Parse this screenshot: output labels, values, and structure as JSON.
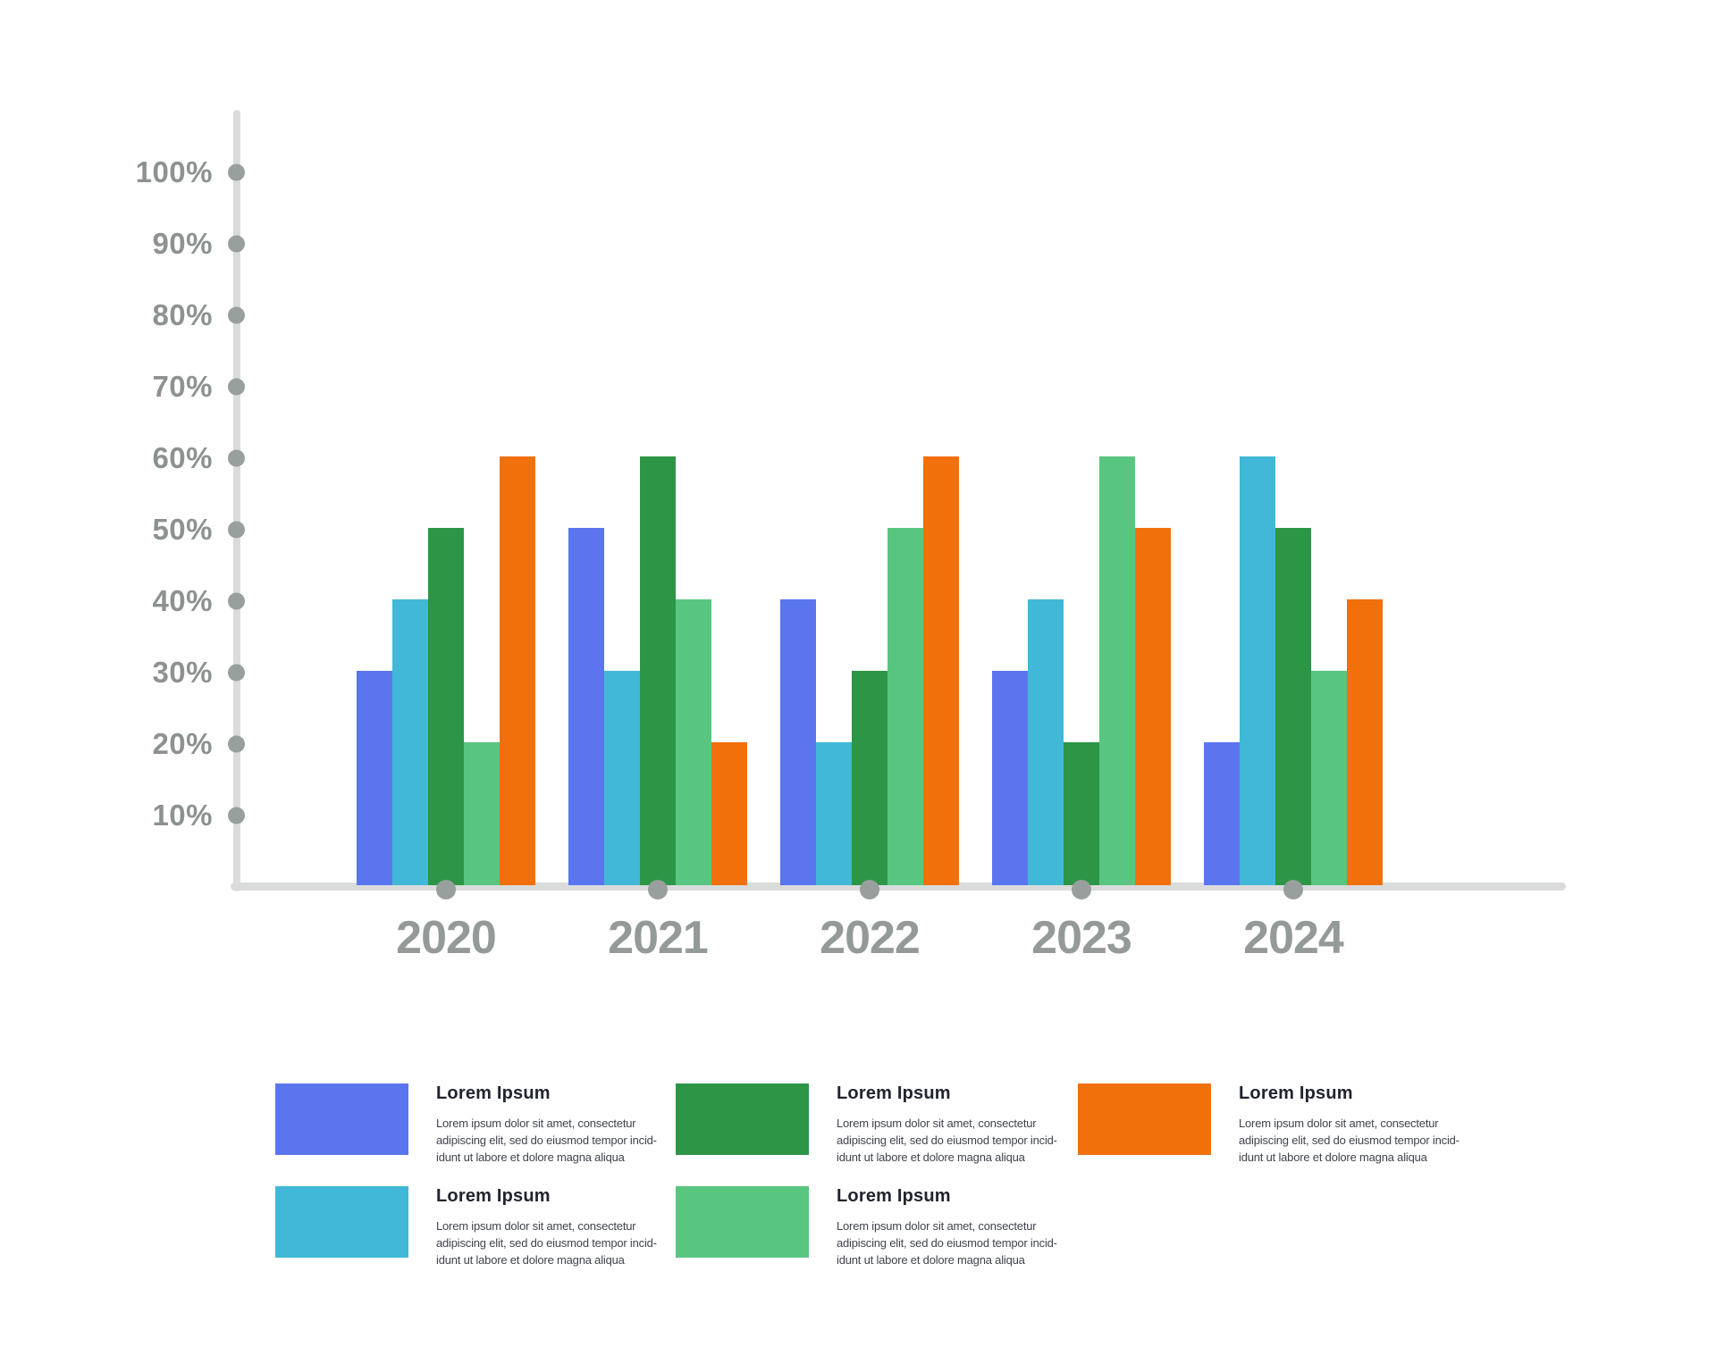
{
  "chart_data": {
    "type": "bar",
    "title": "",
    "xlabel": "",
    "ylabel": "",
    "categories": [
      "2020",
      "2021",
      "2022",
      "2023",
      "2024"
    ],
    "series": [
      {
        "name": "blue",
        "color": "#5b75ef",
        "values": [
          30,
          50,
          40,
          30,
          20
        ]
      },
      {
        "name": "cyan",
        "color": "#41b8d7",
        "values": [
          40,
          30,
          20,
          40,
          60
        ]
      },
      {
        "name": "dark-green",
        "color": "#2d9546",
        "values": [
          50,
          60,
          30,
          20,
          50
        ]
      },
      {
        "name": "light-green",
        "color": "#58c680",
        "values": [
          20,
          40,
          50,
          60,
          30
        ]
      },
      {
        "name": "orange",
        "color": "#f2700c",
        "values": [
          60,
          20,
          60,
          50,
          40
        ]
      }
    ],
    "y_ticks": [
      "100%",
      "90%",
      "80%",
      "70%",
      "60%",
      "50%",
      "40%",
      "30%",
      "20%",
      "10%"
    ],
    "ylim": [
      0,
      100
    ],
    "grid": false,
    "legend_position": "bottom"
  },
  "legend": {
    "items": [
      {
        "series": "blue",
        "color": "#5b75ef",
        "title": "Lorem Ipsum",
        "lines": [
          "Lorem ipsum dolor sit amet, consectetur",
          "adipiscing elit, sed do eiusmod tempor incid-",
          "idunt ut labore et dolore magna aliqua"
        ]
      },
      {
        "series": "dark-green",
        "color": "#2d9546",
        "title": "Lorem Ipsum",
        "lines": [
          "Lorem ipsum dolor sit amet, consectetur",
          "adipiscing elit, sed do eiusmod tempor incid-",
          "idunt ut labore et dolore magna aliqua"
        ]
      },
      {
        "series": "orange",
        "color": "#f2700c",
        "title": "Lorem Ipsum",
        "lines": [
          "Lorem ipsum dolor sit amet, consectetur",
          "adipiscing elit, sed do eiusmod tempor incid-",
          "idunt ut labore et dolore magna aliqua"
        ]
      },
      {
        "series": "cyan",
        "color": "#41b8d7",
        "title": "Lorem Ipsum",
        "lines": [
          "Lorem ipsum dolor sit amet, consectetur",
          "adipiscing elit, sed do eiusmod tempor incid-",
          "idunt ut labore et dolore magna aliqua"
        ]
      },
      {
        "series": "light-green",
        "color": "#58c680",
        "title": "Lorem Ipsum",
        "lines": [
          "Lorem ipsum dolor sit amet, consectetur",
          "adipiscing elit, sed do eiusmod tempor incid-",
          "idunt ut labore et dolore magna aliqua"
        ]
      }
    ]
  },
  "colors": {
    "axis_line": "#d9dcdb",
    "axis_dot": "#989f9c",
    "tick_label": "#8c938f",
    "year_label": "#939a98",
    "legend_title": "#20242e",
    "legend_body": "#3f444d",
    "background": "#ffffff"
  }
}
